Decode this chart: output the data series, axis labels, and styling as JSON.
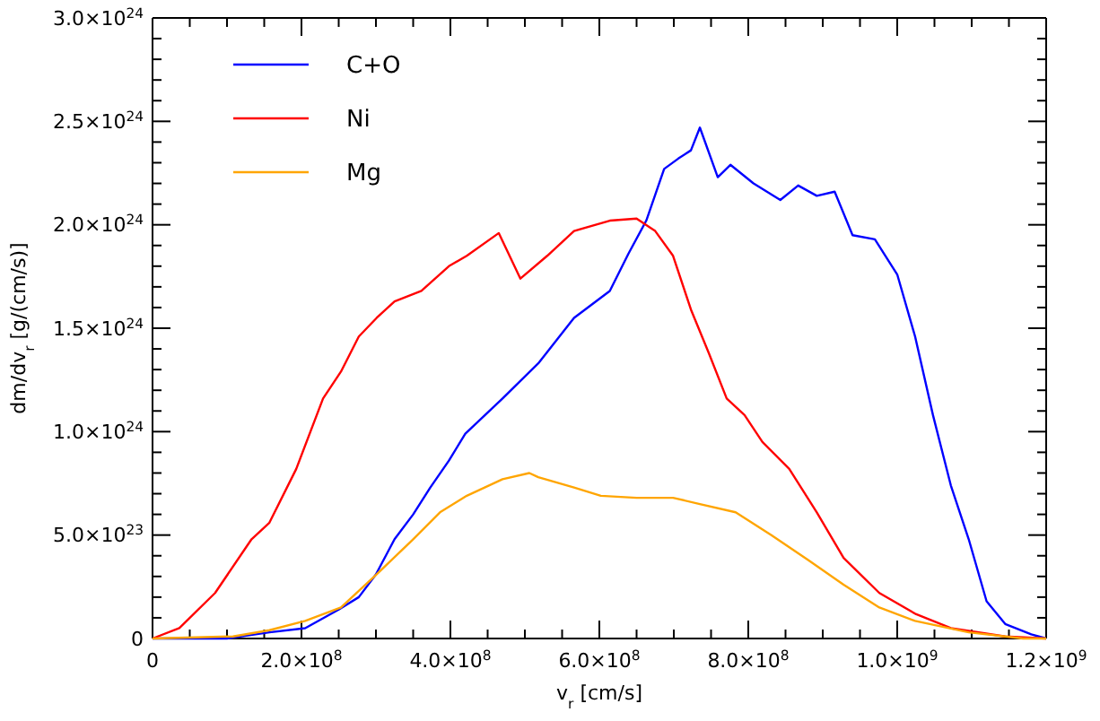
{
  "chart_data": {
    "type": "line",
    "xlabel": "v$_{r}$ [cm/s]",
    "ylabel": "dm/dv$_{r}$ [g/(cm/s)]",
    "xlim": [
      0,
      1200000000.0
    ],
    "ylim": [
      0,
      3e+24
    ],
    "xticks": [
      0,
      {
        "value": 50000000.0,
        "label": null
      },
      {
        "value": 100000000.0,
        "label": null
      },
      {
        "value": 150000000.0,
        "label": null
      },
      {
        "value": 200000000.0,
        "label": "2.0×10$^{8}$"
      },
      {
        "value": 250000000.0,
        "label": null
      },
      {
        "value": 300000000.0,
        "label": null
      },
      {
        "value": 350000000.0,
        "label": null
      },
      {
        "value": 400000000.0,
        "label": "4.0×10$^{8}$"
      },
      {
        "value": 450000000.0,
        "label": null
      },
      {
        "value": 500000000.0,
        "label": null
      },
      {
        "value": 550000000.0,
        "label": null
      },
      {
        "value": 600000000.0,
        "label": "6.0×10$^{8}$"
      },
      {
        "value": 650000000.0,
        "label": null
      },
      {
        "value": 700000000.0,
        "label": null
      },
      {
        "value": 750000000.0,
        "label": null
      },
      {
        "value": 800000000.0,
        "label": "8.0×10$^{8}$"
      },
      {
        "value": 850000000.0,
        "label": null
      },
      {
        "value": 900000000.0,
        "label": null
      },
      {
        "value": 950000000.0,
        "label": null
      },
      {
        "value": 1000000000.0,
        "label": "1.0×10$^{9}$"
      },
      {
        "value": 1050000000.0,
        "label": null
      },
      {
        "value": 1100000000.0,
        "label": null
      },
      {
        "value": 1150000000.0,
        "label": null
      },
      {
        "value": 1200000000.0,
        "label": "1.2×10$^{9}$"
      }
    ],
    "yticks": [
      0,
      {
        "value": 1e+23,
        "label": null
      },
      {
        "value": 2e+23,
        "label": null
      },
      {
        "value": 3e+23,
        "label": null
      },
      {
        "value": 4e+23,
        "label": null
      },
      {
        "value": 5e+23,
        "label": "5.0×10$^{23}$"
      },
      {
        "value": 6e+23,
        "label": null
      },
      {
        "value": 7e+23,
        "label": null
      },
      {
        "value": 8e+23,
        "label": null
      },
      {
        "value": 9e+23,
        "label": null
      },
      {
        "value": 1e+24,
        "label": "1.0×10$^{24}$"
      },
      {
        "value": 1.1e+24,
        "label": null
      },
      {
        "value": 1.2e+24,
        "label": null
      },
      {
        "value": 1.3e+24,
        "label": null
      },
      {
        "value": 1.4e+24,
        "label": null
      },
      {
        "value": 1.5e+24,
        "label": "1.5×10$^{24}$"
      },
      {
        "value": 1.6e+24,
        "label": null
      },
      {
        "value": 1.7e+24,
        "label": null
      },
      {
        "value": 1.8e+24,
        "label": null
      },
      {
        "value": 1.9e+24,
        "label": null
      },
      {
        "value": 2e+24,
        "label": "2.0×10$^{24}$"
      },
      {
        "value": 2.1e+24,
        "label": null
      },
      {
        "value": 2.2e+24,
        "label": null
      },
      {
        "value": 2.3e+24,
        "label": null
      },
      {
        "value": 2.4e+24,
        "label": null
      },
      {
        "value": 2.5e+24,
        "label": "2.5×10$^{24}$"
      },
      {
        "value": 2.6e+24,
        "label": null
      },
      {
        "value": 2.7e+24,
        "label": null
      },
      {
        "value": 2.8e+24,
        "label": null
      },
      {
        "value": 2.9e+24,
        "label": null
      },
      {
        "value": 3e+24,
        "label": "3.0×10$^{24}$"
      }
    ],
    "grid": false,
    "legend": "top left",
    "line_style": "solid",
    "series": [
      {
        "name": "C+O",
        "color": "#0000ff",
        "x": [
          0,
          100000000.0,
          157000000.0,
          205000000.0,
          250000000.0,
          277000000.0,
          300000000.0,
          325000000.0,
          350000000.0,
          373000000.0,
          398000000.0,
          420000000.0,
          470000000.0,
          518000000.0,
          566000000.0,
          614000000.0,
          639000000.0,
          663000000.0,
          687000000.0,
          706000000.0,
          723000000.0,
          735000000.0,
          759000000.0,
          776000000.0,
          807000000.0,
          843000000.0,
          867000000.0,
          892000000.0,
          916000000.0,
          940000000.0,
          970000000.0,
          1000000000.0,
          1024000000.0,
          1048000000.0,
          1072000000.0,
          1096000000.0,
          1120000000.0,
          1145000000.0,
          1180000000.0,
          1200000000.0
        ],
        "values": [
          0,
          0,
          3e+22,
          5e+22,
          1.4e+23,
          2e+23,
          3.1e+23,
          4.8e+23,
          6e+23,
          7.3e+23,
          8.6e+23,
          9.9e+23,
          1.16e+24,
          1.33e+24,
          1.55e+24,
          1.68e+24,
          1.86e+24,
          2.02e+24,
          2.27e+24,
          2.32e+24,
          2.36e+24,
          2.47e+24,
          2.23e+24,
          2.29e+24,
          2.2e+24,
          2.12e+24,
          2.19e+24,
          2.14e+24,
          2.16e+24,
          1.95e+24,
          1.93e+24,
          1.76e+24,
          1.46e+24,
          1.08e+24,
          7.4e+23,
          4.8e+23,
          1.8e+23,
          7e+22,
          2e+22,
          0
        ]
      },
      {
        "name": "Ni",
        "color": "#ff0000",
        "x": [
          0,
          36000000.0,
          84000000.0,
          133000000.0,
          157000000.0,
          193000000.0,
          229000000.0,
          253000000.0,
          277000000.0,
          301000000.0,
          325000000.0,
          361000000.0,
          398000000.0,
          422000000.0,
          465000000.0,
          494000000.0,
          530000000.0,
          566000000.0,
          614000000.0,
          650000000.0,
          675000000.0,
          699000000.0,
          723000000.0,
          747000000.0,
          771000000.0,
          795000000.0,
          819000000.0,
          855000000.0,
          892000000.0,
          928000000.0,
          976000000.0,
          1024000000.0,
          1072000000.0,
          1145000000.0,
          1200000000.0
        ],
        "values": [
          0,
          5e+22,
          2.2e+23,
          4.8e+23,
          5.6e+23,
          8.2e+23,
          1.16e+24,
          1.29e+24,
          1.46e+24,
          1.55e+24,
          1.63e+24,
          1.68e+24,
          1.8e+24,
          1.85e+24,
          1.96e+24,
          1.74e+24,
          1.85e+24,
          1.97e+24,
          2.02e+24,
          2.03e+24,
          1.97e+24,
          1.85e+24,
          1.59e+24,
          1.38e+24,
          1.16e+24,
          1.08e+24,
          9.5e+23,
          8.2e+23,
          6.1e+23,
          3.9e+23,
          2.2e+23,
          1.2e+23,
          5e+22,
          1e+22,
          0
        ]
      },
      {
        "name": "Mg",
        "color": "#ffa500",
        "x": [
          0,
          108000000.0,
          157000000.0,
          205000000.0,
          253000000.0,
          301000000.0,
          350000000.0,
          386000000.0,
          422000000.0,
          470000000.0,
          506000000.0,
          518000000.0,
          566000000.0,
          602000000.0,
          650000000.0,
          699000000.0,
          735000000.0,
          783000000.0,
          831000000.0,
          880000000.0,
          928000000.0,
          976000000.0,
          1024000000.0,
          1096000000.0,
          1169000000.0,
          1200000000.0
        ],
        "values": [
          0,
          1e+22,
          4e+22,
          8.5e+22,
          1.5e+23,
          3.1e+23,
          4.8e+23,
          6.1e+23,
          6.9e+23,
          7.7e+23,
          8e+23,
          7.8e+23,
          7.3e+23,
          6.9e+23,
          6.8e+23,
          6.8e+23,
          6.5e+23,
          6.1e+23,
          5e+23,
          3.8e+23,
          2.6e+23,
          1.5e+23,
          8.5e+22,
          3e+22,
          0,
          0
        ]
      }
    ]
  }
}
